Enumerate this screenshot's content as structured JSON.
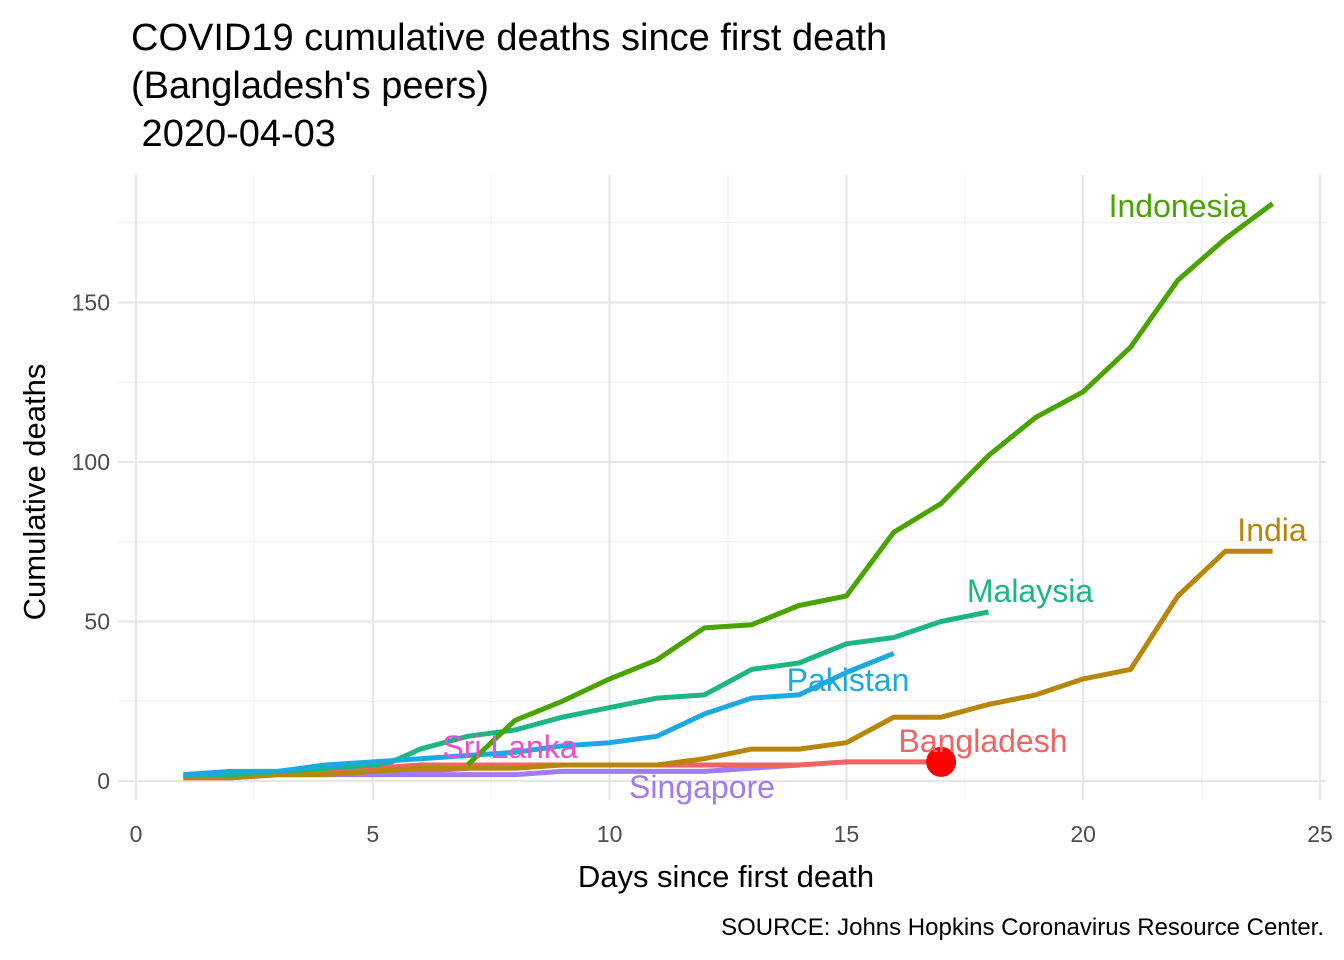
{
  "chart_data": {
    "type": "line",
    "title": [
      "COVID19 cumulative deaths since first death",
      "(Bangladesh's peers)",
      " 2020-04-03"
    ],
    "xlabel": "Days since first death",
    "ylabel": "Cumulative deaths",
    "caption": "SOURCE: Johns Hopkins Coronavirus Resource Center.",
    "xlim": [
      0,
      25
    ],
    "ylim": [
      -5,
      190
    ],
    "x_ticks": [
      0,
      5,
      10,
      15,
      20,
      25
    ],
    "y_ticks": [
      0,
      50,
      100,
      150
    ],
    "grid": true,
    "legend": "none (direct labels)",
    "series": [
      {
        "name": "Indonesia",
        "color": "#49A400",
        "x": [
          7,
          8,
          9,
          10,
          11,
          12,
          13,
          14,
          15,
          16,
          17,
          18,
          19,
          20,
          21,
          22,
          23,
          24
        ],
        "y": [
          5,
          19,
          25,
          32,
          38,
          48,
          49,
          55,
          58,
          78,
          87,
          102,
          114,
          122,
          136,
          157,
          170,
          181
        ]
      },
      {
        "name": "India",
        "color": "#B8860B",
        "x": [
          1,
          2,
          3,
          4,
          5,
          6,
          7,
          8,
          9,
          10,
          11,
          12,
          13,
          14,
          15,
          16,
          17,
          18,
          19,
          20,
          21,
          22,
          23,
          24
        ],
        "y": [
          1,
          1,
          2,
          2,
          3,
          4,
          4,
          4,
          5,
          5,
          5,
          7,
          10,
          10,
          12,
          20,
          20,
          24,
          27,
          32,
          35,
          58,
          72,
          72
        ]
      },
      {
        "name": "Malaysia",
        "color": "#1BB586",
        "x": [
          1,
          2,
          3,
          4,
          5,
          5.4,
          6,
          7,
          8,
          9,
          10,
          11,
          12,
          13,
          14,
          15,
          16,
          17,
          18
        ],
        "y": [
          2,
          2,
          3,
          4,
          5,
          6,
          10,
          14,
          16,
          20,
          23,
          26,
          27,
          35,
          37,
          43,
          45,
          50,
          53
        ]
      },
      {
        "name": "Pakistan",
        "color": "#1DA9E0",
        "x": [
          1,
          2,
          3,
          4,
          5,
          6,
          7,
          8,
          9,
          10,
          11,
          12,
          13,
          14,
          15,
          16
        ],
        "y": [
          2,
          3,
          3,
          5,
          6,
          7,
          8,
          9,
          11,
          12,
          14,
          21,
          26,
          27,
          34,
          40
        ]
      },
      {
        "name": "Bangladesh",
        "color": "#F26363",
        "x": [
          1,
          2,
          3,
          4,
          5,
          6,
          7,
          8,
          9,
          10,
          11,
          12,
          13,
          14,
          15,
          16,
          17
        ],
        "y": [
          1,
          1,
          2,
          3,
          4,
          5,
          5,
          5,
          5,
          5,
          5,
          5,
          5,
          5,
          6,
          6,
          6
        ],
        "highlight_point": {
          "x": 17,
          "y": 6,
          "color": "#FF0000"
        }
      },
      {
        "name": "Sri Lanka",
        "color": "#EE4FD0",
        "x": [
          1,
          2,
          3,
          4,
          5,
          6,
          7
        ],
        "y": [
          1,
          1,
          2,
          2,
          3,
          3,
          4
        ]
      },
      {
        "name": "Singapore",
        "color": "#A07BF3",
        "x": [
          1,
          2,
          3,
          4,
          5,
          6,
          7,
          8,
          9,
          10,
          11,
          12,
          13,
          14
        ],
        "y": [
          2,
          2,
          2,
          2,
          2,
          2,
          2,
          2,
          3,
          3,
          3,
          3,
          4,
          5
        ]
      }
    ]
  }
}
